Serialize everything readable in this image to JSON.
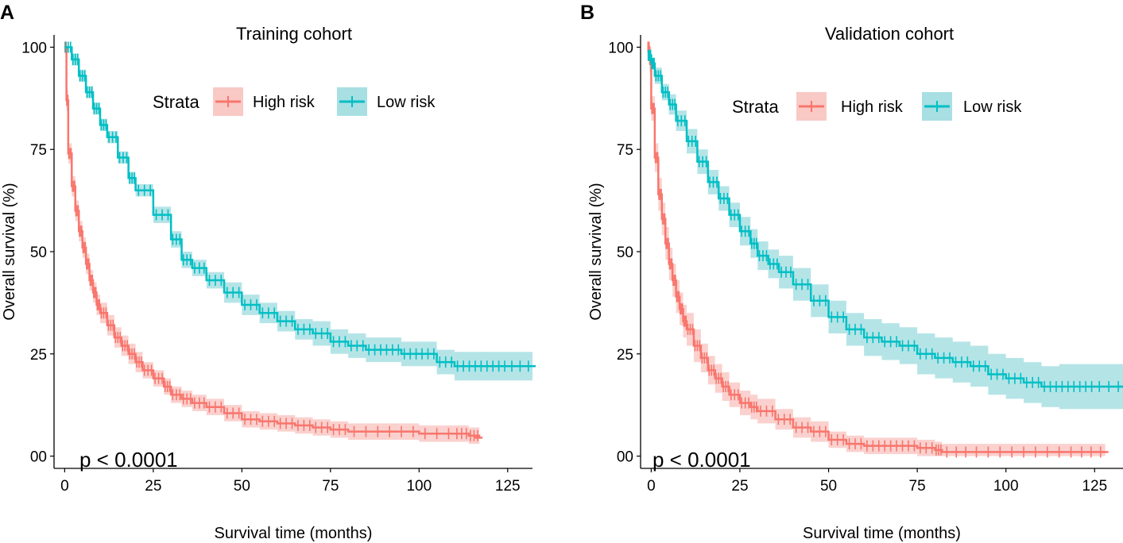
{
  "panels": [
    {
      "letter": "A"
    },
    {
      "letter": "B"
    }
  ],
  "chart_data": [
    {
      "type": "line",
      "subtype": "kaplan-meier",
      "title": "Training cohort",
      "xlabel": "Survival time (months)",
      "ylabel": "Overall survival (%)",
      "xlim": [
        -3,
        132
      ],
      "ylim": [
        -3,
        103
      ],
      "xticks": [
        0,
        25,
        50,
        75,
        100,
        125
      ],
      "yticks": [
        0,
        25,
        50,
        75,
        100
      ],
      "ytick_labels": [
        "00",
        "25",
        "50",
        "75",
        "100"
      ],
      "grid": false,
      "legend": {
        "title": "Strata",
        "position": "top-center",
        "entries": [
          "High risk",
          "Low risk"
        ]
      },
      "annotation": "p < 0.0001",
      "colors": {
        "High risk": "#f8766d",
        "Low risk": "#00bfc4",
        "High risk band": "#f9c9c5",
        "Low risk band": "#a8dfe3"
      },
      "series": [
        {
          "name": "High risk",
          "x": [
            0,
            0.5,
            1,
            2,
            3,
            4,
            5,
            6,
            7,
            8,
            9,
            10,
            12,
            14,
            16,
            18,
            20,
            22,
            25,
            28,
            30,
            33,
            36,
            40,
            45,
            50,
            55,
            60,
            65,
            70,
            75,
            80,
            90,
            100,
            110,
            114,
            117
          ],
          "y": [
            100,
            87,
            74,
            66,
            60,
            55,
            51,
            47,
            43,
            40,
            37,
            35,
            32,
            29,
            27,
            25,
            23,
            21,
            19,
            17,
            15,
            14,
            13,
            12,
            10.5,
            9,
            8.5,
            8,
            7.5,
            7,
            6.5,
            6,
            6,
            5.5,
            5.5,
            5,
            4.5
          ],
          "ci_halfwidth": [
            0,
            2.5,
            2.5,
            2.5,
            2.5,
            2.5,
            2.5,
            2.5,
            2.5,
            2.5,
            2.5,
            2.5,
            2.5,
            2.5,
            2.5,
            2.5,
            2.5,
            2,
            2,
            2,
            2,
            2,
            2,
            2,
            2,
            2,
            2,
            2,
            2,
            2,
            2,
            2,
            2,
            2,
            2,
            2,
            2
          ]
        },
        {
          "name": "Low risk",
          "x": [
            0,
            2,
            4,
            6,
            8,
            10,
            12,
            15,
            18,
            20,
            25,
            30,
            33,
            36,
            40,
            45,
            50,
            55,
            60,
            65,
            70,
            75,
            80,
            85,
            90,
            95,
            100,
            105,
            110,
            115,
            120,
            125,
            132
          ],
          "y": [
            100,
            97,
            93,
            89,
            85,
            81,
            78,
            73,
            68,
            65,
            59,
            53,
            48,
            46,
            43,
            40,
            37,
            35,
            33,
            31,
            30,
            28,
            27,
            26,
            26,
            25,
            25,
            23,
            22,
            22,
            22,
            22,
            22
          ],
          "ci_halfwidth": [
            0,
            1.5,
            1.5,
            1.5,
            1.5,
            1.5,
            1.5,
            1.5,
            1.5,
            1.5,
            2,
            2,
            2,
            2,
            2,
            2.5,
            2.5,
            2.5,
            2.5,
            2.5,
            3,
            3,
            3,
            3,
            3,
            3,
            3,
            3,
            3.5,
            3.5,
            3.5,
            3.5,
            3.5
          ]
        }
      ]
    },
    {
      "type": "line",
      "subtype": "kaplan-meier",
      "title": "Validation cohort",
      "xlabel": "Survival time (months)",
      "ylabel": "Overall survival (%)",
      "xlim": [
        -3,
        133
      ],
      "ylim": [
        -3,
        103
      ],
      "xticks": [
        0,
        25,
        50,
        75,
        100,
        125
      ],
      "yticks": [
        0,
        25,
        50,
        75,
        100
      ],
      "ytick_labels": [
        "00",
        "25",
        "50",
        "75",
        "100"
      ],
      "grid": false,
      "legend": {
        "title": "Strata",
        "position": "top-center",
        "entries": [
          "High risk",
          "Low risk"
        ]
      },
      "annotation": "p < 0.0001",
      "colors": {
        "High risk": "#f8766d",
        "Low risk": "#00bfc4",
        "High risk band": "#f9c9c5",
        "Low risk band": "#a8dfe3"
      },
      "series": [
        {
          "name": "High risk",
          "x": [
            -1,
            -0.5,
            0,
            1,
            2,
            3,
            4,
            5,
            6,
            7,
            8,
            9,
            10,
            12,
            14,
            16,
            18,
            20,
            22,
            25,
            28,
            30,
            35,
            40,
            45,
            50,
            55,
            60,
            65,
            70,
            75,
            80,
            82,
            90,
            100,
            110,
            120,
            128
          ],
          "y": [
            100,
            97,
            85,
            73,
            64,
            58,
            52,
            47,
            43,
            39,
            36,
            33,
            31,
            27,
            24,
            21,
            19,
            17,
            15,
            13,
            12,
            11,
            9,
            7,
            6,
            4,
            3,
            2.5,
            2.5,
            2.5,
            2,
            1.5,
            1,
            1,
            1,
            1,
            1,
            1
          ],
          "ci_halfwidth": [
            0,
            3,
            3,
            3.5,
            4,
            4,
            4,
            4,
            4,
            4,
            4,
            4,
            4,
            4,
            3.5,
            3.5,
            3.5,
            3.5,
            3,
            3,
            3,
            3,
            2.5,
            2.5,
            2.5,
            2,
            2,
            2,
            2,
            2,
            2,
            2,
            2,
            2,
            2,
            2,
            2,
            2
          ]
        },
        {
          "name": "Low risk",
          "x": [
            -1,
            0,
            1,
            3,
            5,
            7,
            10,
            13,
            16,
            19,
            22,
            25,
            28,
            30,
            33,
            36,
            40,
            45,
            50,
            55,
            60,
            65,
            70,
            75,
            80,
            85,
            90,
            95,
            100,
            105,
            110,
            115,
            120,
            125,
            133
          ],
          "y": [
            98,
            96,
            93,
            89,
            86,
            82,
            77,
            72,
            67,
            63,
            59,
            55,
            52,
            49,
            47,
            45,
            42,
            38,
            34,
            31,
            29,
            28,
            27,
            25,
            24,
            23,
            22,
            20,
            19,
            18,
            17,
            17,
            17,
            17,
            17
          ],
          "ci_halfwidth": [
            0,
            1.5,
            2,
            2,
            2.5,
            2.5,
            3,
            3,
            3,
            3,
            3,
            3.5,
            3.5,
            3.5,
            3.5,
            4,
            4,
            4,
            4,
            4,
            4.5,
            4.5,
            4.5,
            5,
            5,
            5,
            5,
            5,
            5,
            5,
            5,
            5.5,
            5.5,
            5.5,
            5.5
          ]
        }
      ]
    }
  ]
}
